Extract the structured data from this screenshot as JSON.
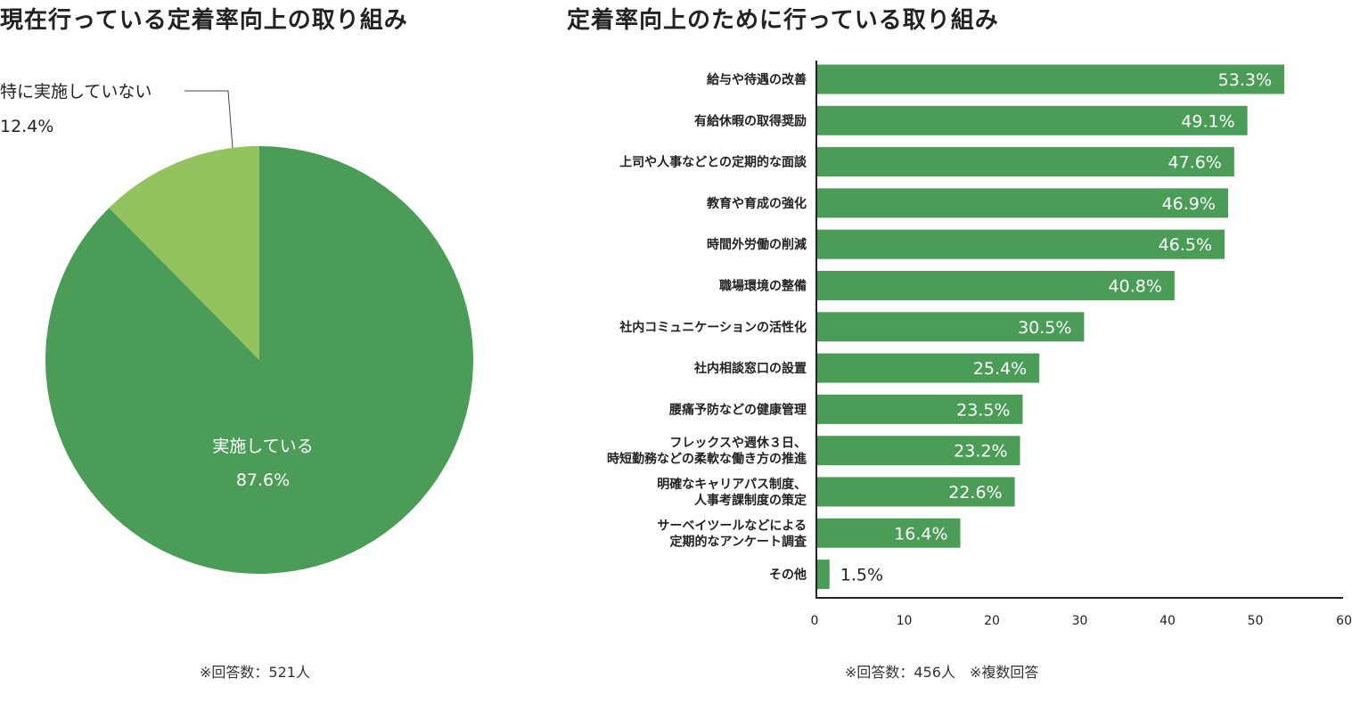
{
  "titles": {
    "pie": "現在行っている定着率向上の取り組み",
    "bar": "定着率向上のために行っている取り組み"
  },
  "notes": {
    "pie": "※回答数：521人",
    "bar": "※回答数：456人　※複数回答"
  },
  "colors": {
    "primary_green": "#4a9c57",
    "light_green": "#93c25f",
    "axis": "#222222"
  },
  "chart_data": [
    {
      "type": "pie",
      "title": "現在行っている定着率向上の取り組み",
      "slices": [
        {
          "label": "実施している",
          "value": 87.6,
          "display": "87.6%",
          "color": "#4a9c57"
        },
        {
          "label": "特に実施していない",
          "value": 12.4,
          "display": "12.4%",
          "color": "#93c25f"
        }
      ]
    },
    {
      "type": "bar",
      "orientation": "horizontal",
      "title": "定着率向上のために行っている取り組み",
      "xlim": [
        0,
        60
      ],
      "xticks": [
        0,
        10,
        20,
        30,
        40,
        50,
        60
      ],
      "categories": [
        [
          "給与や待遇の改善"
        ],
        [
          "有給休暇の取得奨励"
        ],
        [
          "上司や人事などとの定期的な面談"
        ],
        [
          "教育や育成の強化"
        ],
        [
          "時間外労働の削減"
        ],
        [
          "職場環境の整備"
        ],
        [
          "社内コミュニケーションの活性化"
        ],
        [
          "社内相談窓口の設置"
        ],
        [
          "腰痛予防などの健康管理"
        ],
        [
          "フレックスや週休３日、",
          "時短勤務などの柔軟な働き方の推進"
        ],
        [
          "明確なキャリアパス制度、",
          "人事考課制度の策定"
        ],
        [
          "サーベイツールなどによる",
          "定期的なアンケート調査"
        ],
        [
          "その他"
        ]
      ],
      "values": [
        53.3,
        49.1,
        47.6,
        46.9,
        46.5,
        40.8,
        30.5,
        25.4,
        23.5,
        23.2,
        22.6,
        16.4,
        1.5
      ],
      "value_labels": [
        "53.3%",
        "49.1%",
        "47.6%",
        "46.9%",
        "46.5%",
        "40.8%",
        "30.5%",
        "25.4%",
        "23.5%",
        "23.2%",
        "22.6%",
        "16.4%",
        "1.5%"
      ],
      "color": "#4a9c57"
    }
  ]
}
